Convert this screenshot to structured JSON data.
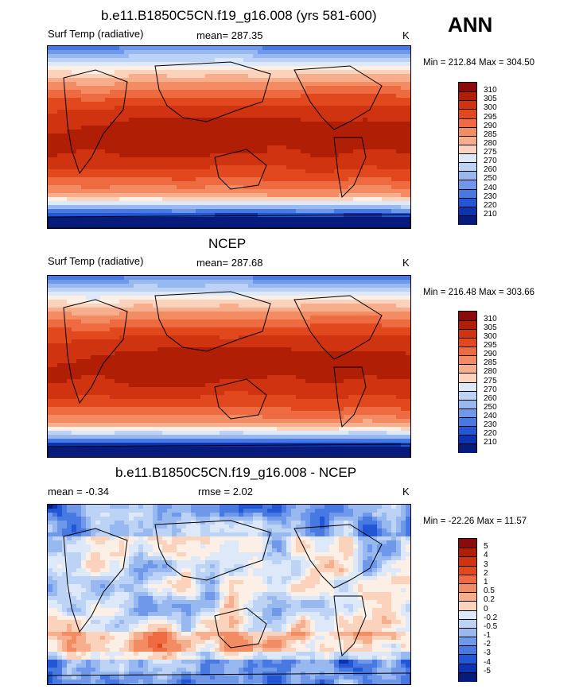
{
  "season": "ANN",
  "panels": [
    {
      "title": "b.e11.B1850C5CN.f19_g16.008 (yrs 581-600)",
      "left_label": "Surf Temp (radiative)",
      "center_label": "mean= 287.35",
      "right_label": "K",
      "minmax": "Min = 212.84 Max = 304.50",
      "ticks": [
        "310",
        "305",
        "300",
        "295",
        "290",
        "285",
        "280",
        "275",
        "270",
        "260",
        "250",
        "240",
        "230",
        "220",
        "210"
      ]
    },
    {
      "title": "NCEP",
      "left_label": "Surf Temp (radiative)",
      "center_label": "mean= 287.68",
      "right_label": "K",
      "minmax": "Min = 216.48 Max = 303.66",
      "ticks": [
        "310",
        "305",
        "300",
        "295",
        "290",
        "285",
        "280",
        "275",
        "270",
        "260",
        "250",
        "240",
        "230",
        "220",
        "210"
      ]
    },
    {
      "title": "b.e11.B1850C5CN.f19_g16.008 - NCEP",
      "left_label": "mean =  -0.34",
      "center_label": "rmse =   2.02",
      "right_label": "K",
      "minmax": "Min = -22.26 Max =  11.57",
      "ticks": [
        "5",
        "4",
        "3",
        "2",
        "1",
        "0.5",
        "0.2",
        "0",
        "-0.2",
        "-0.5",
        "-1",
        "-2",
        "-3",
        "-4",
        "-5"
      ]
    }
  ],
  "colors": {
    "scale": [
      "#8b0a0a",
      "#b01e06",
      "#cf3310",
      "#e2481d",
      "#ee6a40",
      "#f48c63",
      "#f7ae8d",
      "#fbd3bd",
      "#fbefe6",
      "#dde9f8",
      "#bcd3f5",
      "#98b8f0",
      "#6f98ea",
      "#4879e3",
      "#2256d4",
      "#0e33b0",
      "#061b7c"
    ]
  },
  "chart_data": [
    {
      "type": "heatmap",
      "title": "b.e11.B1850C5CN.f19_g16.008 (yrs 581-600)",
      "variable": "Surf Temp (radiative)",
      "units": "K",
      "mean": 287.35,
      "min": 212.84,
      "max": 304.5,
      "levels": [
        210,
        220,
        230,
        240,
        250,
        260,
        270,
        275,
        280,
        285,
        290,
        295,
        300,
        305,
        310
      ]
    },
    {
      "type": "heatmap",
      "title": "NCEP",
      "variable": "Surf Temp (radiative)",
      "units": "K",
      "mean": 287.68,
      "min": 216.48,
      "max": 303.66,
      "levels": [
        210,
        220,
        230,
        240,
        250,
        260,
        270,
        275,
        280,
        285,
        290,
        295,
        300,
        305,
        310
      ]
    },
    {
      "type": "heatmap",
      "title": "b.e11.B1850C5CN.f19_g16.008 - NCEP",
      "units": "K",
      "mean": -0.34,
      "rmse": 2.02,
      "min": -22.26,
      "max": 11.57,
      "levels": [
        -5,
        -4,
        -3,
        -2,
        -1,
        -0.5,
        -0.2,
        0,
        0.2,
        0.5,
        1,
        2,
        3,
        4,
        5
      ]
    }
  ]
}
